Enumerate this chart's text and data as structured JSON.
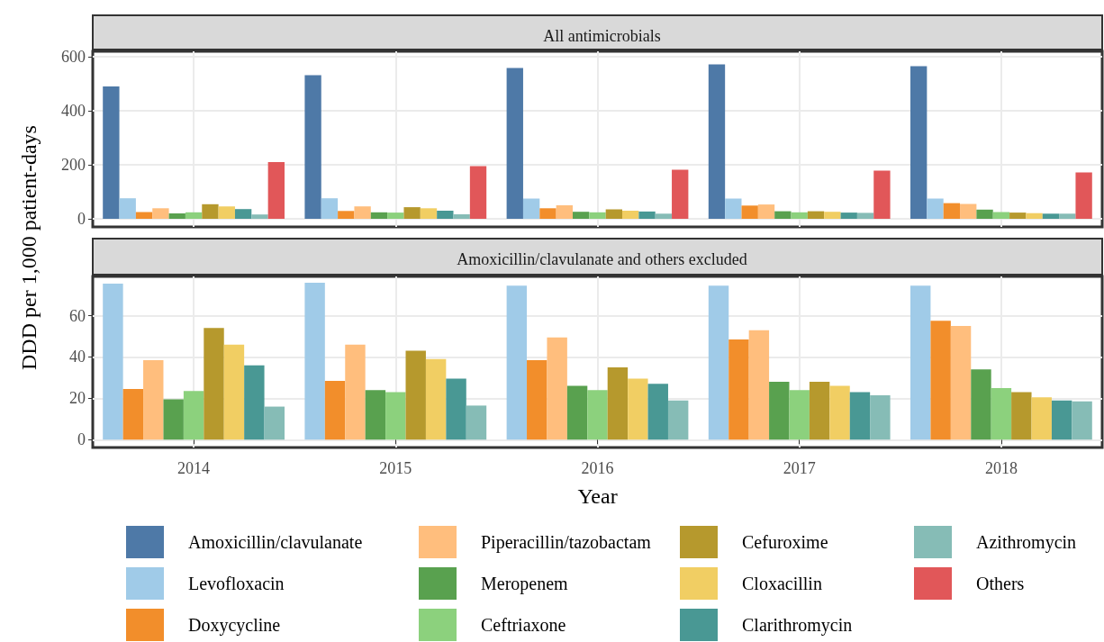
{
  "chart_data": [
    {
      "type": "bar",
      "title": "All antimicrobials",
      "ylabel": "DDD per 1,000 patient-days",
      "categories": [
        "2014",
        "2015",
        "2016",
        "2017",
        "2018"
      ],
      "ylim": [
        -30,
        620
      ],
      "yticks": [
        0,
        200,
        400,
        600
      ],
      "grid": true,
      "legend": "bottom",
      "tick_labels": "y",
      "series": [
        {
          "name": "Amoxicillin/clavulanate",
          "color": "#4e79a7",
          "values": [
            490,
            532,
            558,
            572,
            565
          ]
        },
        {
          "name": "Levofloxacin",
          "color": "#a0cbe8",
          "values": [
            76,
            76,
            75,
            75,
            75
          ]
        },
        {
          "name": "Doxycycline",
          "color": "#f28e2b",
          "values": [
            25,
            29,
            39,
            49,
            58
          ]
        },
        {
          "name": "Piperacillin/tazobactam",
          "color": "#ffbe7d",
          "values": [
            39,
            46,
            50,
            53,
            55
          ]
        },
        {
          "name": "Meropenem",
          "color": "#59a14f",
          "values": [
            20,
            24,
            26,
            28,
            34
          ]
        },
        {
          "name": "Ceftriaxone",
          "color": "#8cd17d",
          "values": [
            24,
            23,
            24,
            24,
            25
          ]
        },
        {
          "name": "Cefuroxime",
          "color": "#b6992d",
          "values": [
            54,
            43,
            35,
            28,
            23
          ]
        },
        {
          "name": "Cloxacillin",
          "color": "#f1ce63",
          "values": [
            46,
            39,
            30,
            26,
            21
          ]
        },
        {
          "name": "Clarithromycin",
          "color": "#499894",
          "values": [
            36,
            30,
            27,
            23,
            19
          ]
        },
        {
          "name": "Azithromycin",
          "color": "#86bcb6",
          "values": [
            16,
            17,
            19,
            22,
            19
          ]
        },
        {
          "name": "Others",
          "color": "#e15759",
          "values": [
            210,
            195,
            182,
            178,
            172
          ]
        }
      ]
    },
    {
      "type": "bar",
      "title": "Amoxicillin/clavulanate and others excluded",
      "xlabel": "Year",
      "categories": [
        "2014",
        "2015",
        "2016",
        "2017",
        "2018"
      ],
      "ylim": [
        -3.8,
        79
      ],
      "yticks": [
        0,
        20,
        40,
        60
      ],
      "grid": true,
      "series": [
        {
          "color": "#a0cbe8",
          "values": [
            75.5,
            76,
            74.5,
            74.5,
            74.5
          ]
        },
        {
          "color": "#f28e2b",
          "values": [
            24.5,
            28.5,
            38.5,
            48.5,
            57.5
          ]
        },
        {
          "color": "#ffbe7d",
          "values": [
            38.5,
            46,
            49.5,
            53,
            55
          ]
        },
        {
          "color": "#59a14f",
          "values": [
            19.5,
            24,
            26,
            28,
            34
          ]
        },
        {
          "color": "#8cd17d",
          "values": [
            23.5,
            23,
            24,
            24,
            25
          ]
        },
        {
          "color": "#b6992d",
          "values": [
            54,
            43,
            35,
            28,
            23
          ]
        },
        {
          "color": "#f1ce63",
          "values": [
            46,
            39,
            29.5,
            26,
            20.5
          ]
        },
        {
          "color": "#499894",
          "values": [
            36,
            29.5,
            27,
            23,
            19
          ]
        },
        {
          "color": "#86bcb6",
          "values": [
            16,
            16.5,
            19,
            21.5,
            18.5
          ]
        }
      ]
    }
  ]
}
